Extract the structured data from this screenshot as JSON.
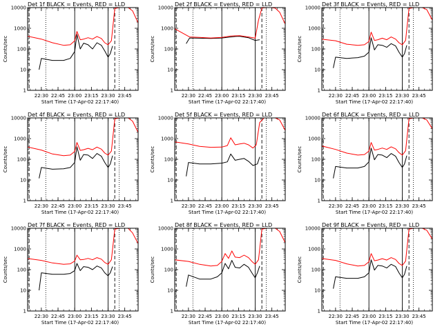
{
  "colors": {
    "events": "#000000",
    "lld": "#ff0000",
    "axis": "#000000",
    "background": "#ffffff"
  },
  "chart_data": {
    "type": "line",
    "layout": "3x3 grid of small multiples",
    "ylabel": "Counts/sec",
    "xlabel": "Start Time (17-Apr-02 22:17:40)",
    "x_tick_labels": [
      "22:30",
      "22:45",
      "23:00",
      "23:15",
      "23:30",
      "23:45"
    ],
    "y_tick_labels": [
      "1",
      "10",
      "100",
      "1000",
      "10000"
    ],
    "y_scale": "log",
    "ylim": [
      1,
      10000
    ],
    "xlim": [
      "22:17:40",
      "23:57:00"
    ],
    "marker_lines": {
      "dashed": [
        "22:19:00",
        "23:36:00"
      ],
      "dotted": [
        "22:34:00",
        "23:40:00"
      ],
      "solid": [
        "23:00:00",
        "23:30:00"
      ]
    },
    "legend_text": "BLACK = Events, RED = LLD",
    "panels": [
      {
        "title": "Det 1f BLACK = Events, RED = LLD",
        "series": [
          {
            "name": "Events",
            "color": "black",
            "x": [
              "22:28",
              "22:30",
              "22:40",
              "22:50",
              "22:56",
              "23:00",
              "23:02",
              "23:05",
              "23:08",
              "23:12",
              "23:16",
              "23:20",
              "23:24",
              "23:27",
              "23:30",
              "23:32",
              "23:34"
            ],
            "y": [
              10,
              35,
              28,
              28,
              35,
              75,
              500,
              100,
              190,
              160,
              100,
              200,
              150,
              80,
              40,
              60,
              140
            ]
          },
          {
            "name": "LLD",
            "color": "red",
            "x": [
              "22:17",
              "22:30",
              "22:40",
              "22:50",
              "22:56",
              "23:00",
              "23:02",
              "23:05",
              "23:08",
              "23:12",
              "23:16",
              "23:20",
              "23:24",
              "23:27",
              "23:30",
              "23:33",
              "23:36",
              "23:40",
              "23:44",
              "23:48",
              "23:52",
              "23:57"
            ],
            "y": [
              420,
              300,
              200,
              150,
              160,
              250,
              700,
              280,
              300,
              350,
              300,
              400,
              320,
              200,
              160,
              250,
              9000,
              10000,
              10000,
              10000,
              7000,
              1800
            ]
          }
        ]
      },
      {
        "title": "Det 2f BLACK = Events, RED = LLD",
        "series": [
          {
            "name": "Events",
            "color": "black",
            "x": [
              "22:28",
              "22:31",
              "22:40",
              "22:50",
              "23:00",
              "23:08",
              "23:12",
              "23:16",
              "23:24",
              "23:30",
              "23:34"
            ],
            "y": [
              180,
              340,
              330,
              320,
              340,
              380,
              400,
              410,
              350,
              260,
              280
            ]
          },
          {
            "name": "LLD",
            "color": "red",
            "x": [
              "22:17",
              "22:22",
              "22:31",
              "22:40",
              "22:50",
              "23:00",
              "23:08",
              "23:12",
              "23:16",
              "23:24",
              "23:30",
              "23:33",
              "23:36",
              "23:40",
              "23:44",
              "23:48",
              "23:52",
              "23:57"
            ],
            "y": [
              1000,
              700,
              380,
              360,
              340,
              360,
              420,
              430,
              440,
              380,
              330,
              2500,
              9500,
              10000,
              10000,
              9500,
              6000,
              1600
            ]
          }
        ]
      },
      {
        "title": "Det 3f BLACK = Events, RED = LLD",
        "series": [
          {
            "name": "Events",
            "color": "black",
            "x": [
              "22:28",
              "22:30",
              "22:40",
              "22:50",
              "22:56",
              "23:00",
              "23:02",
              "23:05",
              "23:08",
              "23:12",
              "23:16",
              "23:20",
              "23:24",
              "23:27",
              "23:30",
              "23:32",
              "23:34"
            ],
            "y": [
              12,
              40,
              35,
              38,
              45,
              70,
              350,
              90,
              160,
              150,
              120,
              180,
              140,
              70,
              40,
              60,
              150
            ]
          },
          {
            "name": "LLD",
            "color": "red",
            "x": [
              "22:17",
              "22:30",
              "22:40",
              "22:50",
              "22:56",
              "23:00",
              "23:02",
              "23:05",
              "23:08",
              "23:12",
              "23:16",
              "23:20",
              "23:24",
              "23:27",
              "23:30",
              "23:33",
              "23:36",
              "23:40",
              "23:44",
              "23:48",
              "23:52",
              "23:57"
            ],
            "y": [
              300,
              250,
              170,
              150,
              160,
              230,
              650,
              260,
              280,
              330,
              280,
              380,
              300,
              200,
              160,
              260,
              9000,
              10000,
              10000,
              10000,
              8000,
              2500
            ]
          }
        ]
      },
      {
        "title": "Det 4f BLACK = Events, RED = LLD",
        "series": [
          {
            "name": "Events",
            "color": "black",
            "x": [
              "22:28",
              "22:30",
              "22:40",
              "22:50",
              "22:56",
              "23:00",
              "23:02",
              "23:05",
              "23:08",
              "23:12",
              "23:16",
              "23:20",
              "23:24",
              "23:27",
              "23:30",
              "23:32",
              "23:34"
            ],
            "y": [
              12,
              40,
              33,
              35,
              40,
              70,
              400,
              90,
              170,
              160,
              110,
              190,
              140,
              70,
              40,
              60,
              150
            ]
          },
          {
            "name": "LLD",
            "color": "red",
            "x": [
              "22:17",
              "22:30",
              "22:40",
              "22:50",
              "22:56",
              "23:00",
              "23:02",
              "23:05",
              "23:08",
              "23:12",
              "23:16",
              "23:20",
              "23:24",
              "23:27",
              "23:30",
              "23:33",
              "23:36",
              "23:40",
              "23:44",
              "23:48",
              "23:52",
              "23:57"
            ],
            "y": [
              400,
              280,
              180,
              150,
              160,
              240,
              650,
              270,
              290,
              340,
              290,
              390,
              310,
              200,
              160,
              250,
              9000,
              10000,
              10000,
              10000,
              7000,
              2000
            ]
          }
        ]
      },
      {
        "title": "Det 5f BLACK = Events, RED = LLD",
        "series": [
          {
            "name": "Events",
            "color": "black",
            "x": [
              "22:28",
              "22:30",
              "22:40",
              "22:50",
              "23:00",
              "23:05",
              "23:08",
              "23:12",
              "23:16",
              "23:20",
              "23:24",
              "23:28",
              "23:32",
              "23:34"
            ],
            "y": [
              15,
              70,
              60,
              60,
              65,
              75,
              180,
              90,
              100,
              110,
              80,
              50,
              60,
              130
            ]
          },
          {
            "name": "LLD",
            "color": "red",
            "x": [
              "22:17",
              "22:30",
              "22:40",
              "22:50",
              "23:00",
              "23:05",
              "23:08",
              "23:12",
              "23:16",
              "23:20",
              "23:24",
              "23:28",
              "23:31",
              "23:34",
              "23:38",
              "23:44",
              "23:48",
              "23:52",
              "23:57"
            ],
            "y": [
              700,
              550,
              420,
              380,
              390,
              460,
              1100,
              500,
              550,
              600,
              500,
              350,
              500,
              6000,
              10000,
              10000,
              10000,
              8000,
              2500
            ]
          }
        ]
      },
      {
        "title": "Det 6f BLACK = Events, RED = LLD",
        "series": [
          {
            "name": "Events",
            "color": "black",
            "x": [
              "22:28",
              "22:30",
              "22:40",
              "22:50",
              "22:56",
              "23:00",
              "23:02",
              "23:05",
              "23:08",
              "23:12",
              "23:16",
              "23:20",
              "23:24",
              "23:27",
              "23:30",
              "23:32",
              "23:34"
            ],
            "y": [
              12,
              45,
              38,
              38,
              45,
              75,
              350,
              95,
              170,
              160,
              120,
              190,
              140,
              70,
              40,
              60,
              150
            ]
          },
          {
            "name": "LLD",
            "color": "red",
            "x": [
              "22:17",
              "22:30",
              "22:40",
              "22:50",
              "22:56",
              "23:00",
              "23:02",
              "23:05",
              "23:08",
              "23:12",
              "23:16",
              "23:20",
              "23:24",
              "23:27",
              "23:30",
              "23:33",
              "23:36",
              "23:40",
              "23:44",
              "23:48",
              "23:52",
              "23:57"
            ],
            "y": [
              450,
              300,
              200,
              160,
              170,
              250,
              650,
              280,
              300,
              350,
              300,
              400,
              320,
              210,
              160,
              260,
              9000,
              10000,
              10000,
              10000,
              8000,
              3000
            ]
          }
        ]
      },
      {
        "title": "Det 7f BLACK = Events, RED = LLD",
        "series": [
          {
            "name": "Events",
            "color": "black",
            "x": [
              "22:28",
              "22:30",
              "22:40",
              "22:50",
              "22:56",
              "23:00",
              "23:02",
              "23:05",
              "23:08",
              "23:12",
              "23:16",
              "23:20",
              "23:24",
              "23:27",
              "23:30",
              "23:32",
              "23:34"
            ],
            "y": [
              10,
              70,
              60,
              60,
              65,
              90,
              200,
              90,
              140,
              130,
              100,
              150,
              120,
              70,
              50,
              70,
              140
            ]
          },
          {
            "name": "LLD",
            "color": "red",
            "x": [
              "22:17",
              "22:30",
              "22:40",
              "22:50",
              "22:56",
              "23:00",
              "23:02",
              "23:05",
              "23:08",
              "23:12",
              "23:16",
              "23:20",
              "23:24",
              "23:27",
              "23:30",
              "23:33",
              "23:36",
              "23:40",
              "23:44",
              "23:48",
              "23:52",
              "23:57"
            ],
            "y": [
              350,
              280,
              210,
              180,
              190,
              260,
              500,
              300,
              310,
              350,
              300,
              380,
              320,
              220,
              180,
              300,
              9000,
              10000,
              10000,
              10000,
              6000,
              1800
            ]
          }
        ]
      },
      {
        "title": "Det 8f BLACK = Events, RED = LLD",
        "series": [
          {
            "name": "Events",
            "color": "black",
            "x": [
              "22:28",
              "22:30",
              "22:40",
              "22:50",
              "22:56",
              "23:00",
              "23:03",
              "23:06",
              "23:09",
              "23:12",
              "23:16",
              "23:20",
              "23:24",
              "23:27",
              "23:30",
              "23:32",
              "23:34"
            ],
            "y": [
              15,
              55,
              35,
              35,
              45,
              70,
              200,
              110,
              280,
              130,
              120,
              180,
              130,
              70,
              40,
              70,
              150
            ]
          },
          {
            "name": "LLD",
            "color": "red",
            "x": [
              "22:17",
              "22:30",
              "22:40",
              "22:50",
              "22:56",
              "23:00",
              "23:03",
              "23:06",
              "23:09",
              "23:12",
              "23:16",
              "23:20",
              "23:24",
              "23:27",
              "23:30",
              "23:33",
              "23:36",
              "23:40",
              "23:44",
              "23:48",
              "23:52",
              "23:57"
            ],
            "y": [
              300,
              250,
              180,
              150,
              160,
              250,
              600,
              350,
              800,
              400,
              380,
              500,
              380,
              250,
              180,
              300,
              9000,
              10000,
              10000,
              10000,
              7000,
              2000
            ]
          }
        ]
      },
      {
        "title": "Det 9f BLACK = Events, RED = LLD",
        "series": [
          {
            "name": "Events",
            "color": "black",
            "x": [
              "22:28",
              "22:30",
              "22:40",
              "22:50",
              "22:56",
              "23:00",
              "23:02",
              "23:05",
              "23:08",
              "23:12",
              "23:16",
              "23:20",
              "23:24",
              "23:27",
              "23:30",
              "23:32",
              "23:34"
            ],
            "y": [
              12,
              45,
              38,
              38,
              45,
              70,
              300,
              95,
              160,
              150,
              120,
              180,
              140,
              70,
              40,
              60,
              150
            ]
          },
          {
            "name": "LLD",
            "color": "red",
            "x": [
              "22:17",
              "22:30",
              "22:40",
              "22:50",
              "22:56",
              "23:00",
              "23:02",
              "23:05",
              "23:08",
              "23:12",
              "23:16",
              "23:20",
              "23:24",
              "23:27",
              "23:30",
              "23:33",
              "23:36",
              "23:40",
              "23:44",
              "23:48",
              "23:52",
              "23:57"
            ],
            "y": [
              350,
              280,
              190,
              150,
              160,
              240,
              600,
              270,
              290,
              340,
              290,
              380,
              310,
              200,
              160,
              260,
              9000,
              10000,
              10000,
              10000,
              8000,
              3000
            ]
          }
        ]
      }
    ]
  }
}
